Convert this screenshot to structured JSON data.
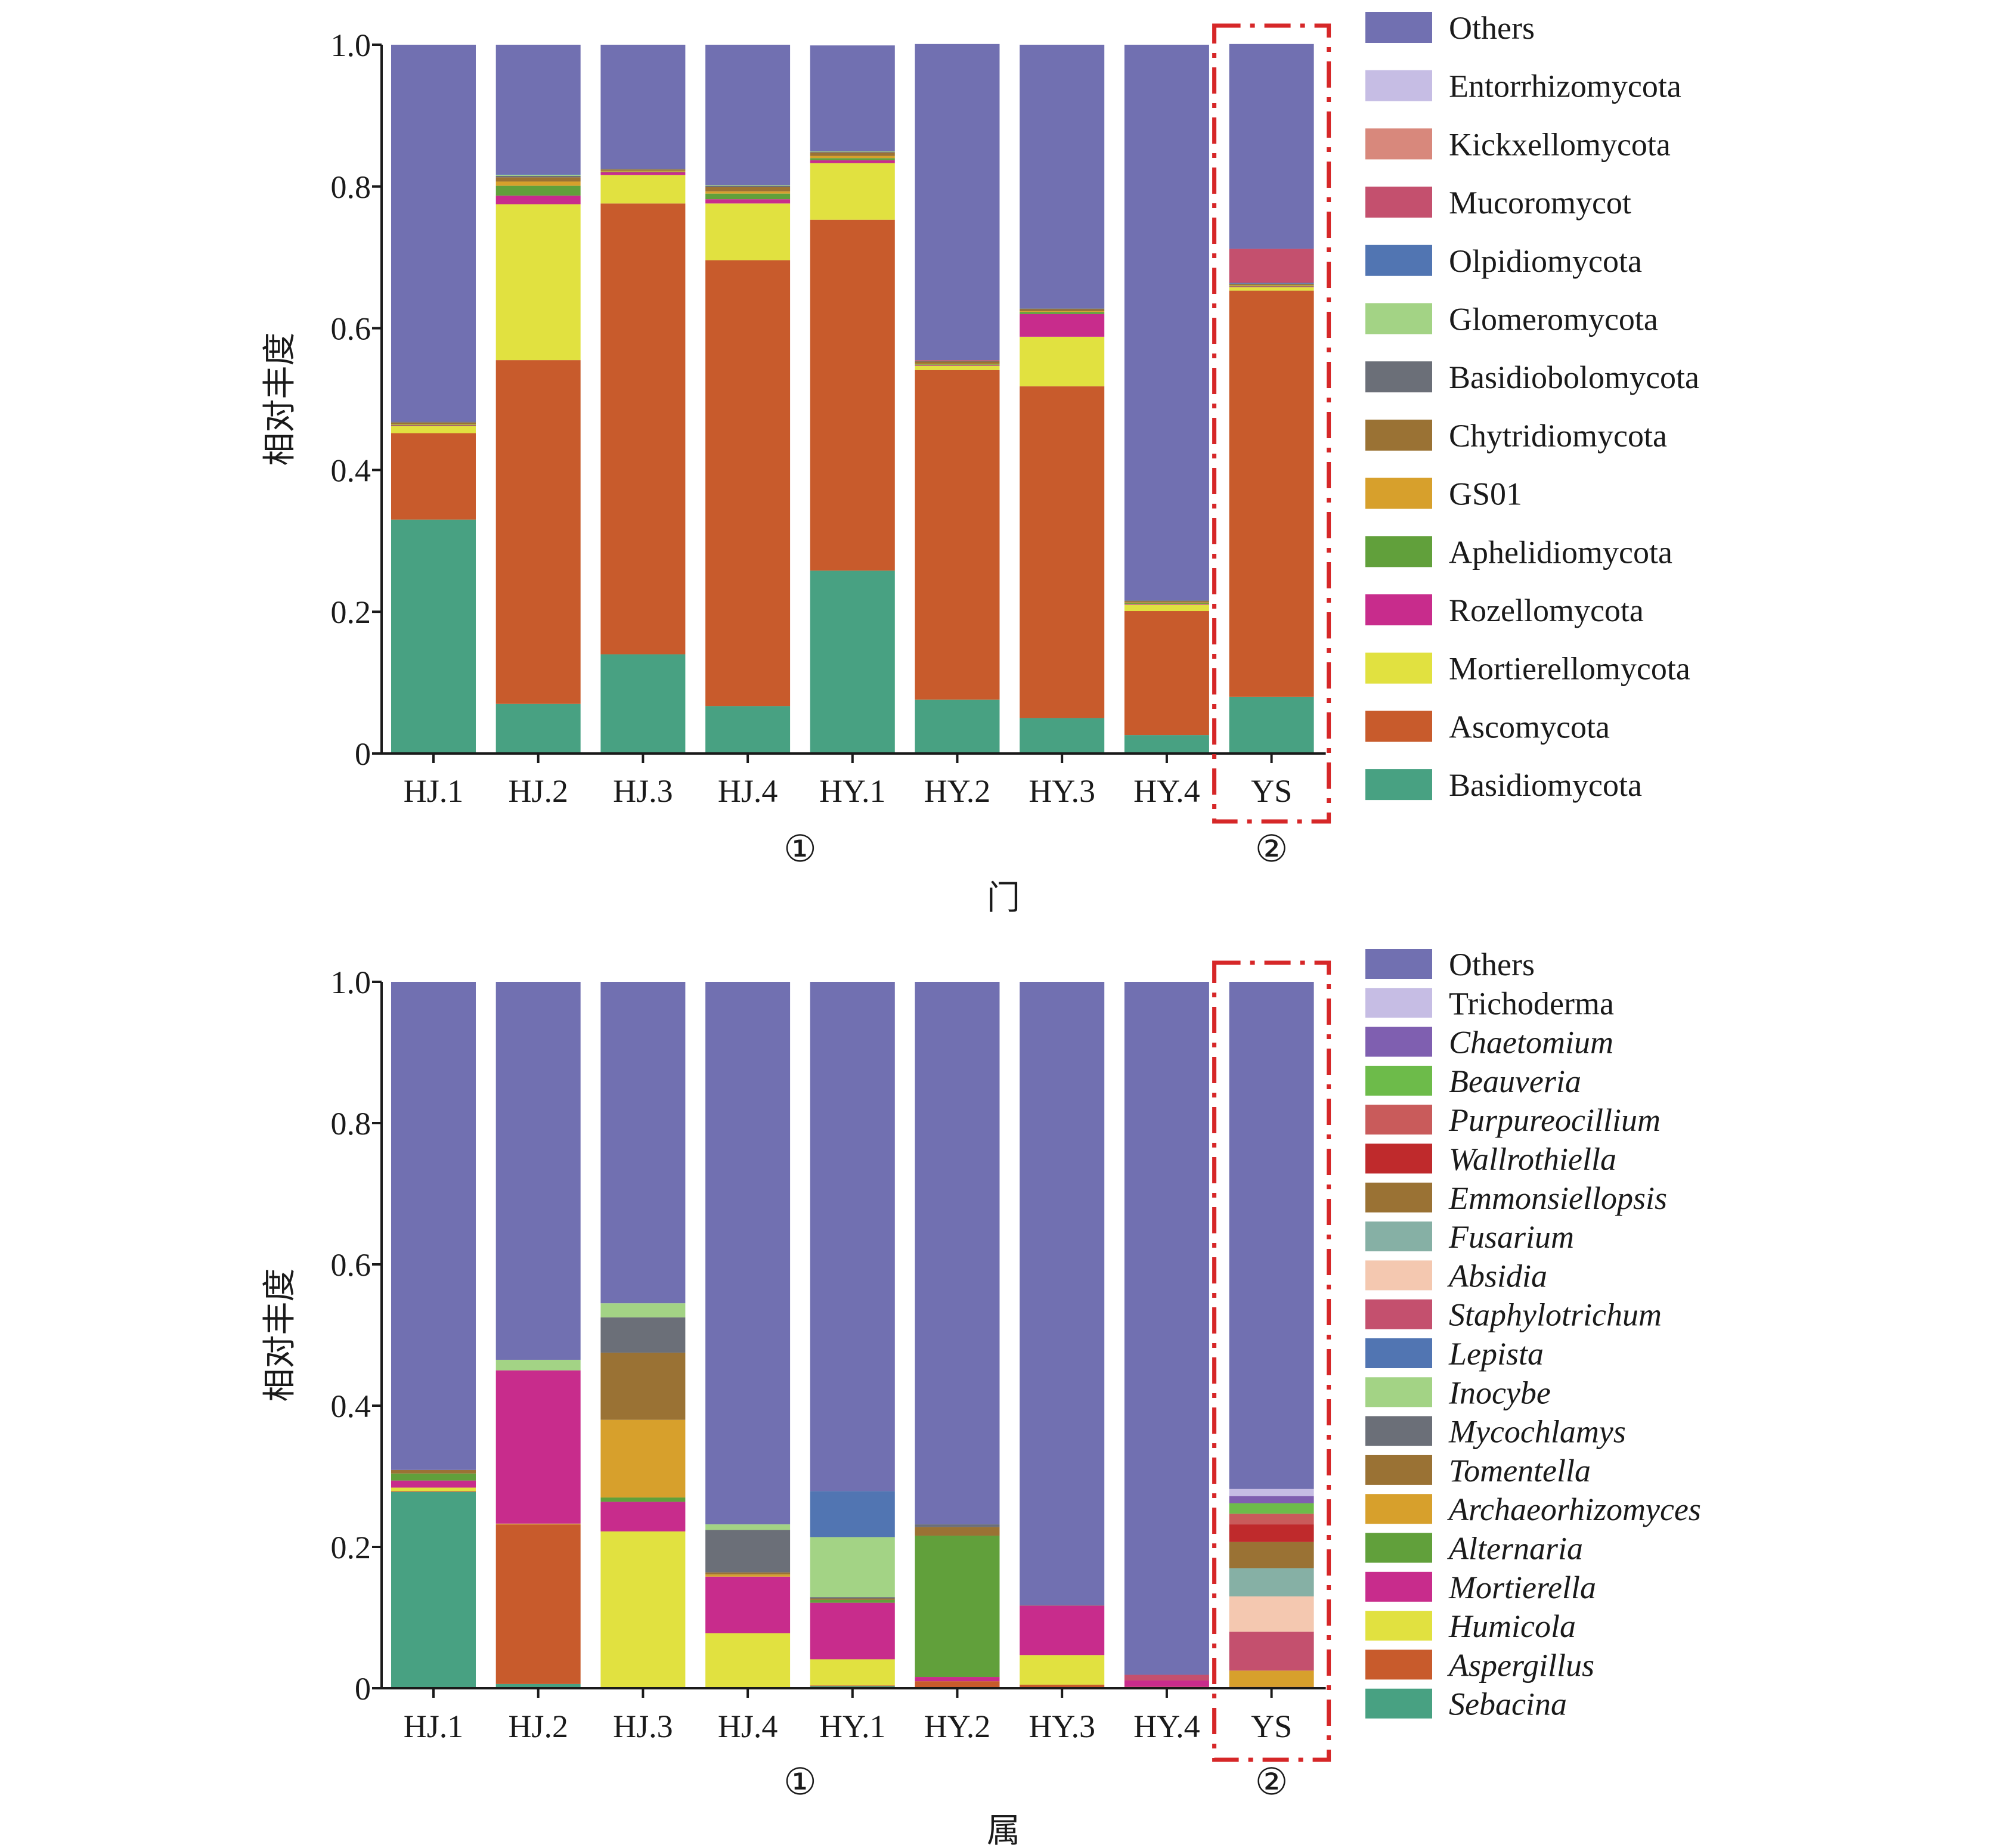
{
  "chart_data": [
    {
      "type": "bar",
      "stacked": true,
      "ylabel": "相对丰度",
      "xlabel": "门",
      "ylim": [
        0,
        1.0
      ],
      "yticks": [
        "0",
        "0.2",
        "0.4",
        "0.6",
        "0.8",
        "1.0"
      ],
      "categories": [
        "HJ.1",
        "HJ.2",
        "HJ.3",
        "HJ.4",
        "HY.1",
        "HY.2",
        "HY.3",
        "HY.4",
        "YS"
      ],
      "group_labels": [
        {
          "label": "①",
          "from": 0,
          "to": 7
        },
        {
          "label": "②",
          "from": 8,
          "to": 8
        }
      ],
      "highlight_box": {
        "category_index": 8,
        "color": "#d62728",
        "style": "dash-dot"
      },
      "legend_position": "right",
      "series": [
        {
          "name": "Basidiomycota",
          "color": "#48a182",
          "values": [
            0.33,
            0.07,
            0.14,
            0.067,
            0.258,
            0.076,
            0.05,
            0.026,
            0.08
          ]
        },
        {
          "name": "Ascomycota",
          "color": "#c85b2c",
          "values": [
            0.122,
            0.485,
            0.636,
            0.629,
            0.495,
            0.465,
            0.468,
            0.175,
            0.573
          ]
        },
        {
          "name": "Mortierellomycota",
          "color": "#e1e140",
          "values": [
            0.01,
            0.22,
            0.04,
            0.08,
            0.08,
            0.006,
            0.07,
            0.009,
            0.005
          ]
        },
        {
          "name": "Rozellomycota",
          "color": "#c82c8c",
          "values": [
            0.001,
            0.012,
            0.004,
            0.006,
            0.004,
            0.001,
            0.032,
            0.001,
            0.001
          ]
        },
        {
          "name": "Aphelidiomycota",
          "color": "#61a03b",
          "values": [
            0.001,
            0.014,
            0.001,
            0.008,
            0.003,
            0.001,
            0.003,
            0.001,
            0.001
          ]
        },
        {
          "name": "GS01",
          "color": "#d7a02c",
          "values": [
            0.001,
            0.006,
            0.001,
            0.003,
            0.003,
            0.001,
            0.001,
            0.001,
            0.001
          ]
        },
        {
          "name": "Chytridiomycota",
          "color": "#9a7234",
          "values": [
            0.002,
            0.006,
            0.002,
            0.006,
            0.005,
            0.003,
            0.003,
            0.002,
            0.001
          ]
        },
        {
          "name": "Basidiobolomycota",
          "color": "#6b6f78",
          "values": [
            0.001,
            0.002,
            0.001,
            0.002,
            0.001,
            0.001,
            0.001,
            0.001,
            0.001
          ]
        },
        {
          "name": "Glomeromycota",
          "color": "#a3d385",
          "values": [
            0.0,
            0.001,
            0.0,
            0.001,
            0.001,
            0.0,
            0.0,
            0.0,
            0.0
          ]
        },
        {
          "name": "Olpidiomycota",
          "color": "#5175b2",
          "values": [
            0.0,
            0.001,
            0.0,
            0.0,
            0.0,
            0.0,
            0.0,
            0.0,
            0.001
          ]
        },
        {
          "name": "Mucoromycot",
          "color": "#c4506e",
          "values": [
            0.0,
            0.0,
            0.0,
            0.0,
            0.0,
            0.001,
            0.0,
            0.0,
            0.048
          ]
        },
        {
          "name": "Kickxellomycota",
          "color": "#d8887c",
          "values": [
            0.0,
            0.0,
            0.0,
            0.0,
            0.0,
            0.0,
            0.0,
            0.0,
            0.0
          ]
        },
        {
          "name": "Entorrhizomycota",
          "color": "#c6bde4",
          "values": [
            0.0,
            0.0,
            0.0,
            0.0,
            0.0,
            0.0,
            0.0,
            0.0,
            0.0
          ]
        },
        {
          "name": "Others",
          "color": "#7170b1",
          "values": [
            0.532,
            0.183,
            0.175,
            0.198,
            0.149,
            0.446,
            0.372,
            0.784,
            0.289
          ]
        }
      ]
    },
    {
      "type": "bar",
      "stacked": true,
      "ylabel": "相对丰度",
      "xlabel": "属",
      "ylim": [
        0,
        1.0
      ],
      "yticks": [
        "0",
        "0.2",
        "0.4",
        "0.6",
        "0.8",
        "1.0"
      ],
      "categories": [
        "HJ.1",
        "HJ.2",
        "HJ.3",
        "HJ.4",
        "HY.1",
        "HY.2",
        "HY.3",
        "HY.4",
        "YS"
      ],
      "group_labels": [
        {
          "label": "①",
          "from": 0,
          "to": 7
        },
        {
          "label": "②",
          "from": 8,
          "to": 8
        }
      ],
      "highlight_box": {
        "category_index": 8,
        "color": "#d62728",
        "style": "dash-dot"
      },
      "legend_position": "right",
      "series": [
        {
          "name": "Sebacina",
          "italic": true,
          "color": "#48a182",
          "values": [
            0.278,
            0.006,
            0.0,
            0.0,
            0.003,
            0.001,
            0.0,
            0.0,
            0.0
          ]
        },
        {
          "name": "Aspergillus",
          "italic": true,
          "color": "#c85b2c",
          "values": [
            0.001,
            0.226,
            0.001,
            0.001,
            0.001,
            0.009,
            0.005,
            0.002,
            0.002
          ]
        },
        {
          "name": "Humicola",
          "italic": true,
          "color": "#e1e140",
          "values": [
            0.005,
            0.001,
            0.221,
            0.077,
            0.037,
            0.0,
            0.042,
            0.0,
            0.0
          ]
        },
        {
          "name": "Mortierella",
          "italic": true,
          "color": "#c82c8c",
          "values": [
            0.01,
            0.217,
            0.042,
            0.08,
            0.08,
            0.006,
            0.07,
            0.009,
            0.0
          ]
        },
        {
          "name": "Alternaria",
          "italic": true,
          "color": "#61a03b",
          "values": [
            0.01,
            0.0,
            0.006,
            0.0,
            0.004,
            0.2,
            0.0,
            0.0,
            0.0
          ]
        },
        {
          "name": "Archaeorhizomyces",
          "italic": true,
          "color": "#d7a02c",
          "values": [
            0.0,
            0.0,
            0.11,
            0.003,
            0.0,
            0.0,
            0.0,
            0.0,
            0.023
          ]
        },
        {
          "name": "Tomentella",
          "italic": true,
          "color": "#9a7234",
          "values": [
            0.005,
            0.0,
            0.095,
            0.003,
            0.002,
            0.012,
            0.0,
            0.0,
            0.0
          ]
        },
        {
          "name": "Mycochlamys",
          "italic": true,
          "color": "#6b6f78",
          "values": [
            0.0,
            0.0,
            0.05,
            0.06,
            0.002,
            0.004,
            0.001,
            0.0,
            0.0
          ]
        },
        {
          "name": "Inocybe",
          "italic": true,
          "color": "#a3d385",
          "values": [
            0.0,
            0.015,
            0.02,
            0.008,
            0.085,
            0.0,
            0.0,
            0.0,
            0.0
          ]
        },
        {
          "name": "Lepista",
          "italic": true,
          "color": "#5175b2",
          "values": [
            0.0,
            0.0,
            0.0,
            0.0,
            0.065,
            0.0,
            0.0,
            0.0,
            0.0
          ]
        },
        {
          "name": "Staphylotrichum",
          "italic": true,
          "color": "#c4506e",
          "values": [
            0.0,
            0.0,
            0.0,
            0.0,
            0.0,
            0.0,
            0.0,
            0.008,
            0.055
          ]
        },
        {
          "name": "Absidia",
          "italic": true,
          "color": "#f4c8b0",
          "values": [
            0.0,
            0.0,
            0.0,
            0.0,
            0.0,
            0.0,
            0.0,
            0.0,
            0.05
          ]
        },
        {
          "name": "Fusarium",
          "italic": true,
          "color": "#86b0a5",
          "values": [
            0.0,
            0.0,
            0.0,
            0.0,
            0.0,
            0.0,
            0.0,
            0.0,
            0.04
          ]
        },
        {
          "name": "Emmonsiellopsis",
          "italic": true,
          "color": "#9a7234",
          "values": [
            0.0,
            0.0,
            0.0,
            0.0,
            0.0,
            0.0,
            0.0,
            0.0,
            0.037
          ]
        },
        {
          "name": "Wallrothiella",
          "italic": true,
          "color": "#bf2a2c",
          "values": [
            0.0,
            0.0,
            0.0,
            0.0,
            0.0,
            0.0,
            0.0,
            0.0,
            0.025
          ]
        },
        {
          "name": "Purpureocillium",
          "italic": true,
          "color": "#c95b5b",
          "values": [
            0.0,
            0.0,
            0.0,
            0.0,
            0.0,
            0.0,
            0.0,
            0.0,
            0.015
          ]
        },
        {
          "name": "Beauveria",
          "italic": true,
          "color": "#6dbb4a",
          "values": [
            0.0,
            0.0,
            0.0,
            0.0,
            0.0,
            0.0,
            0.0,
            0.0,
            0.015
          ]
        },
        {
          "name": "Chaetomium",
          "italic": true,
          "color": "#7f5fb0",
          "values": [
            0.0,
            0.0,
            0.0,
            0.0,
            0.0,
            0.0,
            0.0,
            0.0,
            0.01
          ]
        },
        {
          "name": "Trichoderma",
          "italic": false,
          "color": "#c6bde4",
          "values": [
            0.0,
            0.0,
            0.0,
            0.0,
            0.0,
            0.0,
            0.0,
            0.0,
            0.01
          ]
        },
        {
          "name": "Others",
          "italic": false,
          "color": "#7170b1",
          "values": [
            0.691,
            0.535,
            0.455,
            0.768,
            0.721,
            0.768,
            0.882,
            0.981,
            0.718
          ]
        }
      ]
    }
  ]
}
